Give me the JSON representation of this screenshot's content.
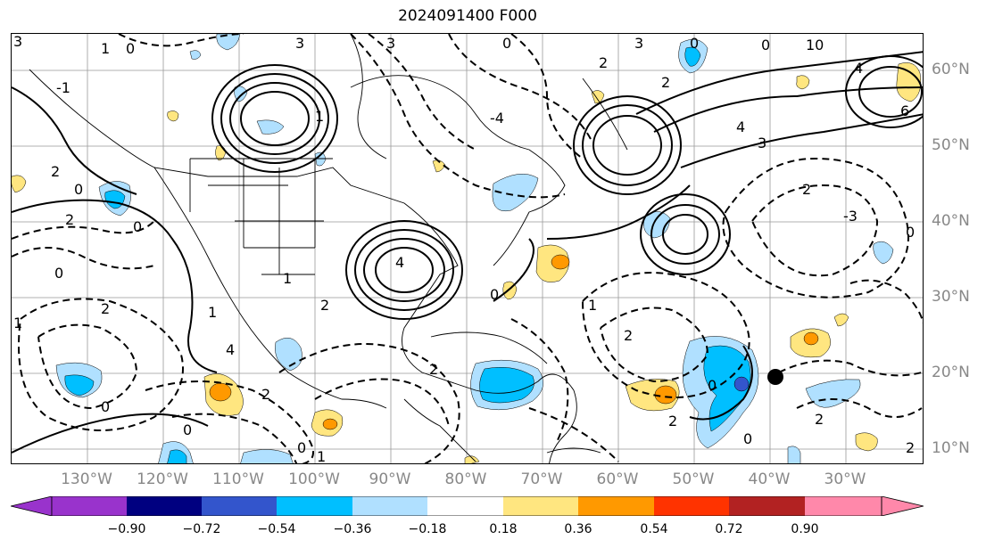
{
  "title": "2024091400 F000",
  "lon_labels": [
    "130°W",
    "120°W",
    "110°W",
    "100°W",
    "90°W",
    "80°W",
    "70°W",
    "60°W",
    "50°W",
    "40°W",
    "30°W"
  ],
  "lat_labels": [
    "60°N",
    "50°N",
    "40°N",
    "30°N",
    "20°N",
    "10°N"
  ],
  "colorbar": {
    "ticks": [
      "−0.90",
      "−0.72",
      "−0.54",
      "−0.36",
      "−0.18",
      "0.18",
      "0.36",
      "0.54",
      "0.72",
      "0.90"
    ],
    "colors": {
      "under": "#9933cc",
      "c1": "#9933cc",
      "c2": "#000080",
      "c3": "#3355cc",
      "c4": "#00bfff",
      "c5": "#b0e0ff",
      "c6": "#ffffff",
      "c7": "#ffe680",
      "c8": "#ff9900",
      "c9": "#ff3300",
      "c10": "#b22222",
      "c11": "#ff88aa",
      "over": "#ff88aa"
    }
  },
  "contour_labels": [
    "3",
    "1",
    "0",
    "-1",
    "-2",
    "-3",
    "2",
    "4",
    "6",
    "-4"
  ],
  "marker": "storm-center-dot"
}
